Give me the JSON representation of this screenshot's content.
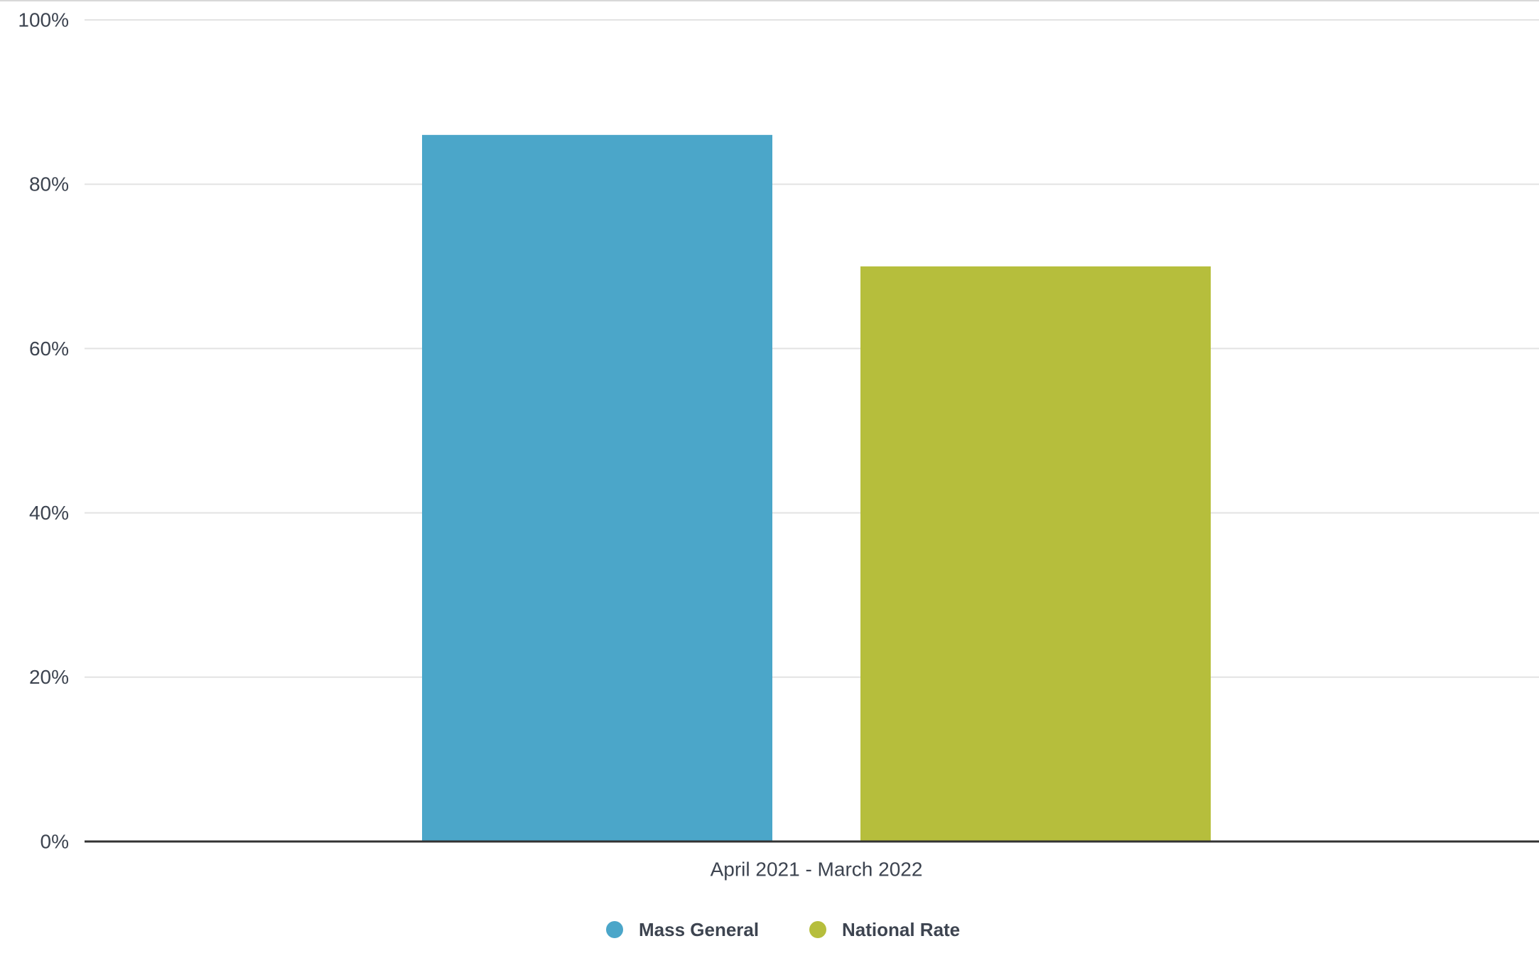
{
  "chart_data": {
    "type": "bar",
    "categories": [
      "April 2021 - March 2022"
    ],
    "series": [
      {
        "name": "Mass General",
        "color": "#4ba6c9",
        "values": [
          86
        ]
      },
      {
        "name": "National Rate",
        "color": "#b6be3c",
        "values": [
          70
        ]
      }
    ],
    "ylim": [
      0,
      100
    ],
    "yticks": [
      {
        "value": 0,
        "label": "0%"
      },
      {
        "value": 20,
        "label": "20%"
      },
      {
        "value": 40,
        "label": "40%"
      },
      {
        "value": 60,
        "label": "60%"
      },
      {
        "value": 80,
        "label": "80%"
      },
      {
        "value": 100,
        "label": "100%"
      }
    ],
    "grid": true,
    "legend": "bottom"
  }
}
